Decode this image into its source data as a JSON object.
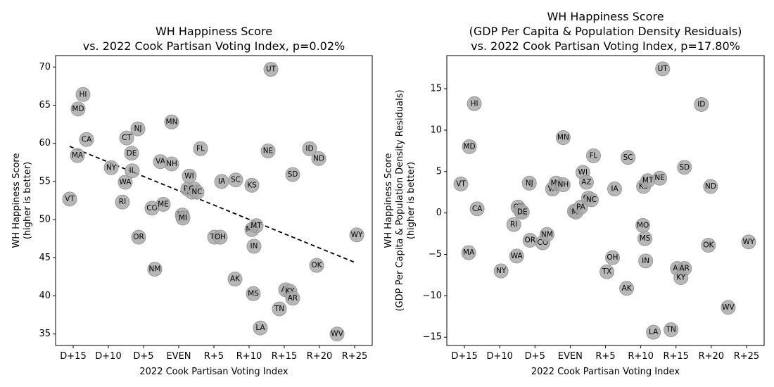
{
  "chart_data": [
    {
      "type": "scatter",
      "title": [
        "WH Happiness Score",
        "vs. 2022 Cook Partisan Voting Index, p=0.02%"
      ],
      "xlabel": "2022 Cook Partisan Voting Index",
      "ylabel": [
        "WH Happiness Score",
        "(higher is better)"
      ],
      "xlim": [
        -17.5,
        27.5
      ],
      "ylim": [
        33.5,
        71.5
      ],
      "xticks": [
        {
          "value": -15,
          "label": "D+15"
        },
        {
          "value": -10,
          "label": "D+10"
        },
        {
          "value": -5,
          "label": "D+5"
        },
        {
          "value": 0,
          "label": "EVEN"
        },
        {
          "value": 5,
          "label": "R+5"
        },
        {
          "value": 10,
          "label": "R+10"
        },
        {
          "value": 15,
          "label": "R+15"
        },
        {
          "value": 20,
          "label": "R+20"
        },
        {
          "value": 25,
          "label": "R+25"
        }
      ],
      "yticks": [
        35,
        40,
        45,
        50,
        55,
        60,
        65,
        70
      ],
      "trendline": {
        "x": [
          -15.5,
          25
        ],
        "y": [
          59.6,
          44.4
        ]
      },
      "points": [
        {
          "label": "VT",
          "x": -15.5,
          "y": 52.7
        },
        {
          "label": "MD",
          "x": -14.3,
          "y": 64.5
        },
        {
          "label": "HI",
          "x": -13.6,
          "y": 66.4
        },
        {
          "label": "MA",
          "x": -14.4,
          "y": 58.4
        },
        {
          "label": "CA",
          "x": -13.1,
          "y": 60.5
        },
        {
          "label": "NY",
          "x": -9.6,
          "y": 56.8
        },
        {
          "label": "WA",
          "x": -7.6,
          "y": 54.9
        },
        {
          "label": "RI",
          "x": -8.0,
          "y": 52.3
        },
        {
          "label": "CT",
          "x": -7.4,
          "y": 60.7
        },
        {
          "label": "DE",
          "x": -6.7,
          "y": 58.7
        },
        {
          "label": "IL",
          "x": -6.6,
          "y": 56.4
        },
        {
          "label": "NJ",
          "x": -5.8,
          "y": 61.9
        },
        {
          "label": "OR",
          "x": -5.7,
          "y": 47.7
        },
        {
          "label": "CO",
          "x": -3.8,
          "y": 51.5
        },
        {
          "label": "NM",
          "x": -3.4,
          "y": 43.5
        },
        {
          "label": "VA",
          "x": -2.6,
          "y": 57.6
        },
        {
          "label": "ME",
          "x": -2.2,
          "y": 52.0
        },
        {
          "label": "MN",
          "x": -1.0,
          "y": 62.8
        },
        {
          "label": "NH",
          "x": -1.0,
          "y": 57.3
        },
        {
          "label": "NV",
          "x": 0.5,
          "y": 50.6
        },
        {
          "label": "MI",
          "x": 0.6,
          "y": 50.2
        },
        {
          "label": "PA",
          "x": 1.3,
          "y": 54.0
        },
        {
          "label": "WI",
          "x": 1.5,
          "y": 55.7
        },
        {
          "label": "AZ",
          "x": 1.9,
          "y": 53.6
        },
        {
          "label": "GA",
          "x": 2.2,
          "y": 54.0
        },
        {
          "label": "NC",
          "x": 2.6,
          "y": 53.6
        },
        {
          "label": "FL",
          "x": 3.1,
          "y": 59.3
        },
        {
          "label": "TX",
          "x": 5.1,
          "y": 47.7
        },
        {
          "label": "OH",
          "x": 5.9,
          "y": 47.7
        },
        {
          "label": "IA",
          "x": 6.1,
          "y": 55.0
        },
        {
          "label": "SC",
          "x": 8.1,
          "y": 55.2
        },
        {
          "label": "AK",
          "x": 8.0,
          "y": 42.2
        },
        {
          "label": "KS",
          "x": 10.4,
          "y": 54.5
        },
        {
          "label": "MO",
          "x": 10.4,
          "y": 48.7
        },
        {
          "label": "MT",
          "x": 11.0,
          "y": 49.2
        },
        {
          "label": "IN",
          "x": 10.7,
          "y": 46.5
        },
        {
          "label": "MS",
          "x": 10.6,
          "y": 40.3
        },
        {
          "label": "LA",
          "x": 11.6,
          "y": 35.8
        },
        {
          "label": "NE",
          "x": 12.7,
          "y": 59.0
        },
        {
          "label": "UT",
          "x": 13.1,
          "y": 69.7
        },
        {
          "label": "TN",
          "x": 14.3,
          "y": 38.3
        },
        {
          "label": "AL",
          "x": 15.2,
          "y": 40.8
        },
        {
          "label": "KY",
          "x": 15.8,
          "y": 40.6
        },
        {
          "label": "AR",
          "x": 16.2,
          "y": 39.7
        },
        {
          "label": "SD",
          "x": 16.2,
          "y": 55.9
        },
        {
          "label": "ID",
          "x": 18.6,
          "y": 59.3
        },
        {
          "label": "ND",
          "x": 19.9,
          "y": 58.0
        },
        {
          "label": "OK",
          "x": 19.6,
          "y": 44.0
        },
        {
          "label": "WV",
          "x": 22.5,
          "y": 35.0
        },
        {
          "label": "WY",
          "x": 25.3,
          "y": 48.0
        }
      ]
    },
    {
      "type": "scatter",
      "title": [
        "WH Happiness Score",
        "(GDP Per Capita & Population Density Residuals)",
        "vs. 2022 Cook Partisan Voting Index, p=17.80%"
      ],
      "xlabel": "2022 Cook Partisan Voting Index",
      "ylabel": [
        "WH Happiness Score",
        "(GDP Per Capita & Population Density Residuals)",
        "(higher is better)"
      ],
      "xlim": [
        -17.5,
        27.5
      ],
      "ylim": [
        -16,
        19
      ],
      "xticks": [
        {
          "value": -15,
          "label": "D+15"
        },
        {
          "value": -10,
          "label": "D+10"
        },
        {
          "value": -5,
          "label": "D+5"
        },
        {
          "value": 0,
          "label": "EVEN"
        },
        {
          "value": 5,
          "label": "R+5"
        },
        {
          "value": 10,
          "label": "R+10"
        },
        {
          "value": 15,
          "label": "R+15"
        },
        {
          "value": 20,
          "label": "R+20"
        },
        {
          "value": 25,
          "label": "R+25"
        }
      ],
      "yticks": [
        -15,
        -10,
        -5,
        0,
        5,
        10,
        15
      ],
      "points": [
        {
          "label": "VT",
          "x": -15.5,
          "y": 3.5
        },
        {
          "label": "HI",
          "x": -13.6,
          "y": 13.2
        },
        {
          "label": "MD",
          "x": -14.3,
          "y": 8.0
        },
        {
          "label": "CA",
          "x": -13.2,
          "y": 0.5
        },
        {
          "label": "MA",
          "x": -14.4,
          "y": -4.8
        },
        {
          "label": "NY",
          "x": -9.8,
          "y": -7.0
        },
        {
          "label": "WA",
          "x": -7.6,
          "y": -5.2
        },
        {
          "label": "RI",
          "x": -8.0,
          "y": -1.4
        },
        {
          "label": "CT",
          "x": -7.4,
          "y": 0.7
        },
        {
          "label": "IL",
          "x": -7.0,
          "y": 0.2
        },
        {
          "label": "DE",
          "x": -6.8,
          "y": 0.1
        },
        {
          "label": "NJ",
          "x": -5.8,
          "y": 3.6
        },
        {
          "label": "OR",
          "x": -5.7,
          "y": -3.3
        },
        {
          "label": "CO",
          "x": -3.9,
          "y": -3.6
        },
        {
          "label": "NM",
          "x": -3.3,
          "y": -2.6
        },
        {
          "label": "VA",
          "x": -2.5,
          "y": 2.9
        },
        {
          "label": "ME",
          "x": -2.0,
          "y": 3.6
        },
        {
          "label": "NH",
          "x": -1.0,
          "y": 3.4
        },
        {
          "label": "MN",
          "x": -1.0,
          "y": 9.1
        },
        {
          "label": "NV",
          "x": 0.6,
          "y": 0.2
        },
        {
          "label": "MI",
          "x": 0.8,
          "y": 0.1
        },
        {
          "label": "PA",
          "x": 1.5,
          "y": 0.7
        },
        {
          "label": "WI",
          "x": 1.8,
          "y": 4.9
        },
        {
          "label": "AZ",
          "x": 2.3,
          "y": 3.7
        },
        {
          "label": "GA",
          "x": 2.6,
          "y": 1.8
        },
        {
          "label": "NC",
          "x": 3.0,
          "y": 1.6
        },
        {
          "label": "FL",
          "x": 3.3,
          "y": 6.9
        },
        {
          "label": "TX",
          "x": 5.2,
          "y": -7.1
        },
        {
          "label": "OH",
          "x": 6.0,
          "y": -5.4
        },
        {
          "label": "IA",
          "x": 6.3,
          "y": 2.9
        },
        {
          "label": "SC",
          "x": 8.2,
          "y": 6.7
        },
        {
          "label": "AK",
          "x": 8.0,
          "y": -9.1
        },
        {
          "label": "KS",
          "x": 10.4,
          "y": 3.2
        },
        {
          "label": "MT",
          "x": 11.0,
          "y": 3.9
        },
        {
          "label": "MO",
          "x": 10.3,
          "y": -1.5
        },
        {
          "label": "MS",
          "x": 10.6,
          "y": -3.1
        },
        {
          "label": "IN",
          "x": 10.7,
          "y": -5.8
        },
        {
          "label": "LA",
          "x": 11.8,
          "y": -14.4
        },
        {
          "label": "NE",
          "x": 12.7,
          "y": 4.2
        },
        {
          "label": "UT",
          "x": 13.1,
          "y": 17.4
        },
        {
          "label": "TN",
          "x": 14.3,
          "y": -14.1
        },
        {
          "label": "AL",
          "x": 15.2,
          "y": -6.7
        },
        {
          "label": "AR",
          "x": 16.2,
          "y": -6.7
        },
        {
          "label": "KY",
          "x": 15.7,
          "y": -7.8
        },
        {
          "label": "SD",
          "x": 16.2,
          "y": 5.5
        },
        {
          "label": "ID",
          "x": 18.6,
          "y": 13.1
        },
        {
          "label": "ND",
          "x": 19.9,
          "y": 3.2
        },
        {
          "label": "OK",
          "x": 19.6,
          "y": -3.9
        },
        {
          "label": "WV",
          "x": 22.4,
          "y": -11.4
        },
        {
          "label": "WY",
          "x": 25.3,
          "y": -3.5
        }
      ]
    }
  ]
}
